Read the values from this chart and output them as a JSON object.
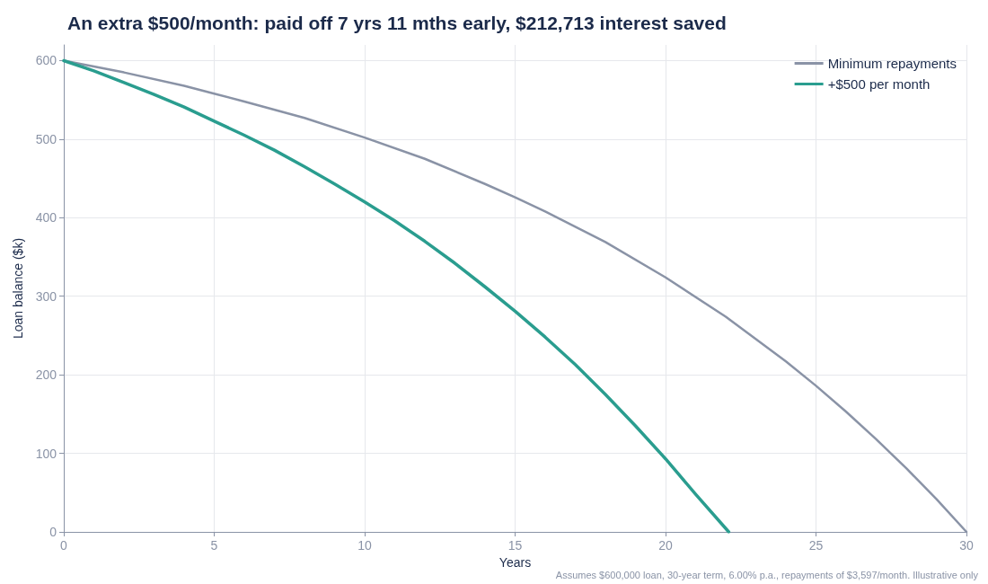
{
  "chart_data": {
    "type": "line",
    "title": "An extra $500/month: paid off 7 yrs 11 mths early, $212,713 interest saved",
    "xlabel": "Years",
    "ylabel": "Loan balance ($k)",
    "annotations": [
      "Assumes $600,000 loan, 30-year term, 6.00% p.a., repayments of $3,597/month. Illustrative only"
    ],
    "series": [
      {
        "name": "Minimum repayments",
        "color": "#8a93a6",
        "x": [
          0,
          2,
          4,
          5,
          6,
          8,
          10,
          12,
          14,
          15,
          16,
          18,
          20,
          22,
          24,
          25,
          26,
          27,
          28,
          29,
          30
        ],
        "values": [
          600,
          585,
          568,
          558,
          548,
          527,
          502,
          475,
          443,
          426,
          408,
          369,
          324,
          274,
          217,
          186,
          153,
          118,
          81,
          42,
          0
        ]
      },
      {
        "name": "+$500 per month",
        "color": "#2a9d8f",
        "x": [
          0,
          1,
          2,
          3,
          4,
          5,
          6,
          7,
          8,
          9,
          10,
          11,
          12,
          13,
          14,
          15,
          16,
          17,
          18,
          19,
          20,
          21,
          22.1
        ],
        "values": [
          600,
          587,
          572,
          557,
          541,
          523,
          505,
          486,
          465,
          443,
          420,
          396,
          370,
          342,
          312,
          281,
          248,
          213,
          175,
          135,
          93,
          48,
          0
        ]
      }
    ],
    "xlim": [
      0,
      30
    ],
    "xticks": [
      0,
      5,
      10,
      15,
      20,
      25,
      30
    ],
    "ylim": [
      0,
      620
    ],
    "yticks": [
      0,
      100,
      200,
      300,
      400,
      500,
      600
    ],
    "grid": true,
    "legend": "top right",
    "marker": "none",
    "line_style": "solid"
  }
}
